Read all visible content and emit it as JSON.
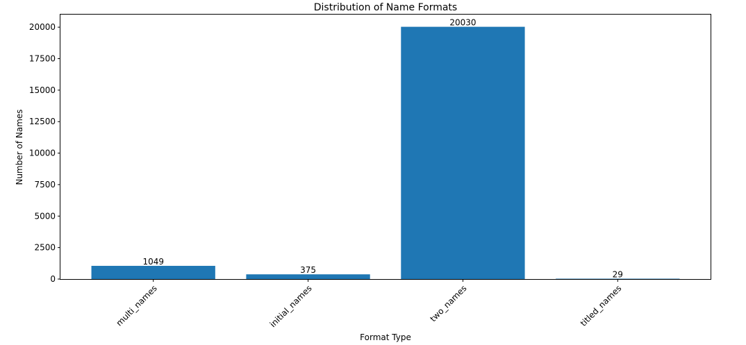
{
  "chart_data": {
    "type": "bar",
    "title": "Distribution of Name Formats",
    "xlabel": "Format Type",
    "ylabel": "Number of Names",
    "categories": [
      "multi_names",
      "initial_names",
      "two_names",
      "titled_names"
    ],
    "values": [
      1049,
      375,
      20030,
      29
    ],
    "data_labels": [
      "1049",
      "375",
      "20030",
      "29"
    ],
    "ylim": [
      0,
      21000
    ],
    "yticks": [
      0,
      2500,
      5000,
      7500,
      10000,
      12500,
      15000,
      17500,
      20000
    ],
    "ytick_labels": [
      "0",
      "2500",
      "5000",
      "7500",
      "10000",
      "12500",
      "15000",
      "17500",
      "20000"
    ],
    "bar_color": "#1f77b4",
    "grid": false,
    "legend": "none"
  }
}
